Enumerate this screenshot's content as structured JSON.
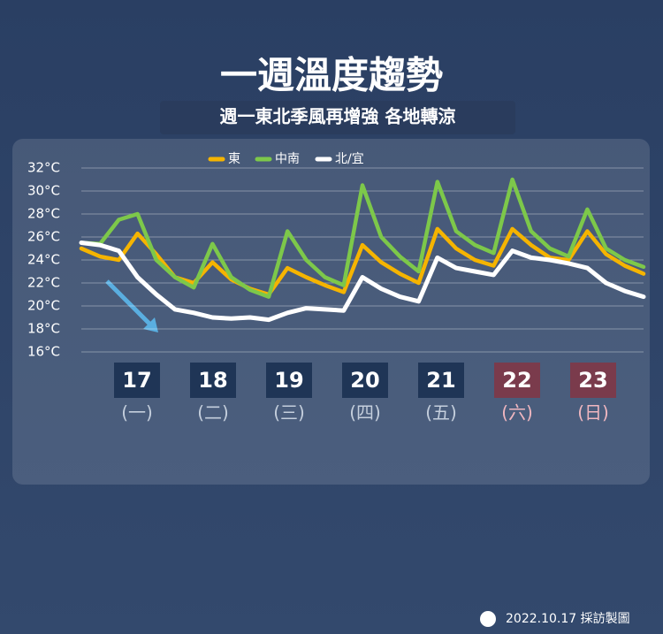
{
  "chart_data": {
    "type": "line",
    "title": "一週溫度趨勢",
    "subtitle": "週一東北季風再增強  各地轉涼",
    "ylim": [
      16,
      32
    ],
    "yticks": [
      {
        "value": 16,
        "label": "16°C"
      },
      {
        "value": 18,
        "label": "18°C"
      },
      {
        "value": 20,
        "label": "20°C"
      },
      {
        "value": 22,
        "label": "22°C"
      },
      {
        "value": 24,
        "label": "24°C"
      },
      {
        "value": 26,
        "label": "26°C"
      },
      {
        "value": 28,
        "label": "28°C"
      },
      {
        "value": 30,
        "label": "30°C"
      },
      {
        "value": 32,
        "label": "32°C"
      }
    ],
    "grid": true,
    "series": [
      {
        "name": "東",
        "color": "#f5b400",
        "values": [
          25.0,
          24.3,
          24.0,
          26.3,
          24.5,
          22.5,
          22.0,
          23.8,
          22.3,
          21.5,
          21.0,
          23.3,
          22.5,
          21.8,
          21.2,
          25.3,
          23.8,
          22.8,
          22.0,
          26.7,
          25.0,
          24.0,
          23.5,
          26.7,
          25.3,
          24.2,
          24.0,
          26.5,
          24.5,
          23.5,
          22.8
        ]
      },
      {
        "name": "中南",
        "color": "#7dc84a",
        "values": [
          25.5,
          25.4,
          27.5,
          28.0,
          24.0,
          22.5,
          21.6,
          25.4,
          22.5,
          21.4,
          20.8,
          26.5,
          24.0,
          22.5,
          21.8,
          30.5,
          26.0,
          24.3,
          23.0,
          30.8,
          26.5,
          25.3,
          24.6,
          31.0,
          26.5,
          25.0,
          24.3,
          28.4,
          25.0,
          24.0,
          23.4
        ]
      },
      {
        "name": "北/宜",
        "color": "#ffffff",
        "values": [
          25.5,
          25.3,
          24.8,
          22.5,
          21.0,
          19.7,
          19.4,
          19.0,
          18.9,
          19.0,
          18.8,
          19.4,
          19.8,
          19.7,
          19.6,
          22.5,
          21.5,
          20.8,
          20.4,
          24.2,
          23.3,
          23.0,
          22.7,
          24.8,
          24.2,
          24.0,
          23.7,
          23.3,
          22.0,
          21.3,
          20.8
        ]
      }
    ],
    "days": [
      {
        "date": "17",
        "weekday": "(一)",
        "weekend": false
      },
      {
        "date": "18",
        "weekday": "(二)",
        "weekend": false
      },
      {
        "date": "19",
        "weekday": "(三)",
        "weekend": false
      },
      {
        "date": "20",
        "weekday": "(四)",
        "weekend": false
      },
      {
        "date": "21",
        "weekday": "(五)",
        "weekend": false
      },
      {
        "date": "22",
        "weekday": "(六)",
        "weekend": true
      },
      {
        "date": "23",
        "weekday": "(日)",
        "weekend": true
      }
    ],
    "footer": "2022.10.17 採訪製圖"
  }
}
